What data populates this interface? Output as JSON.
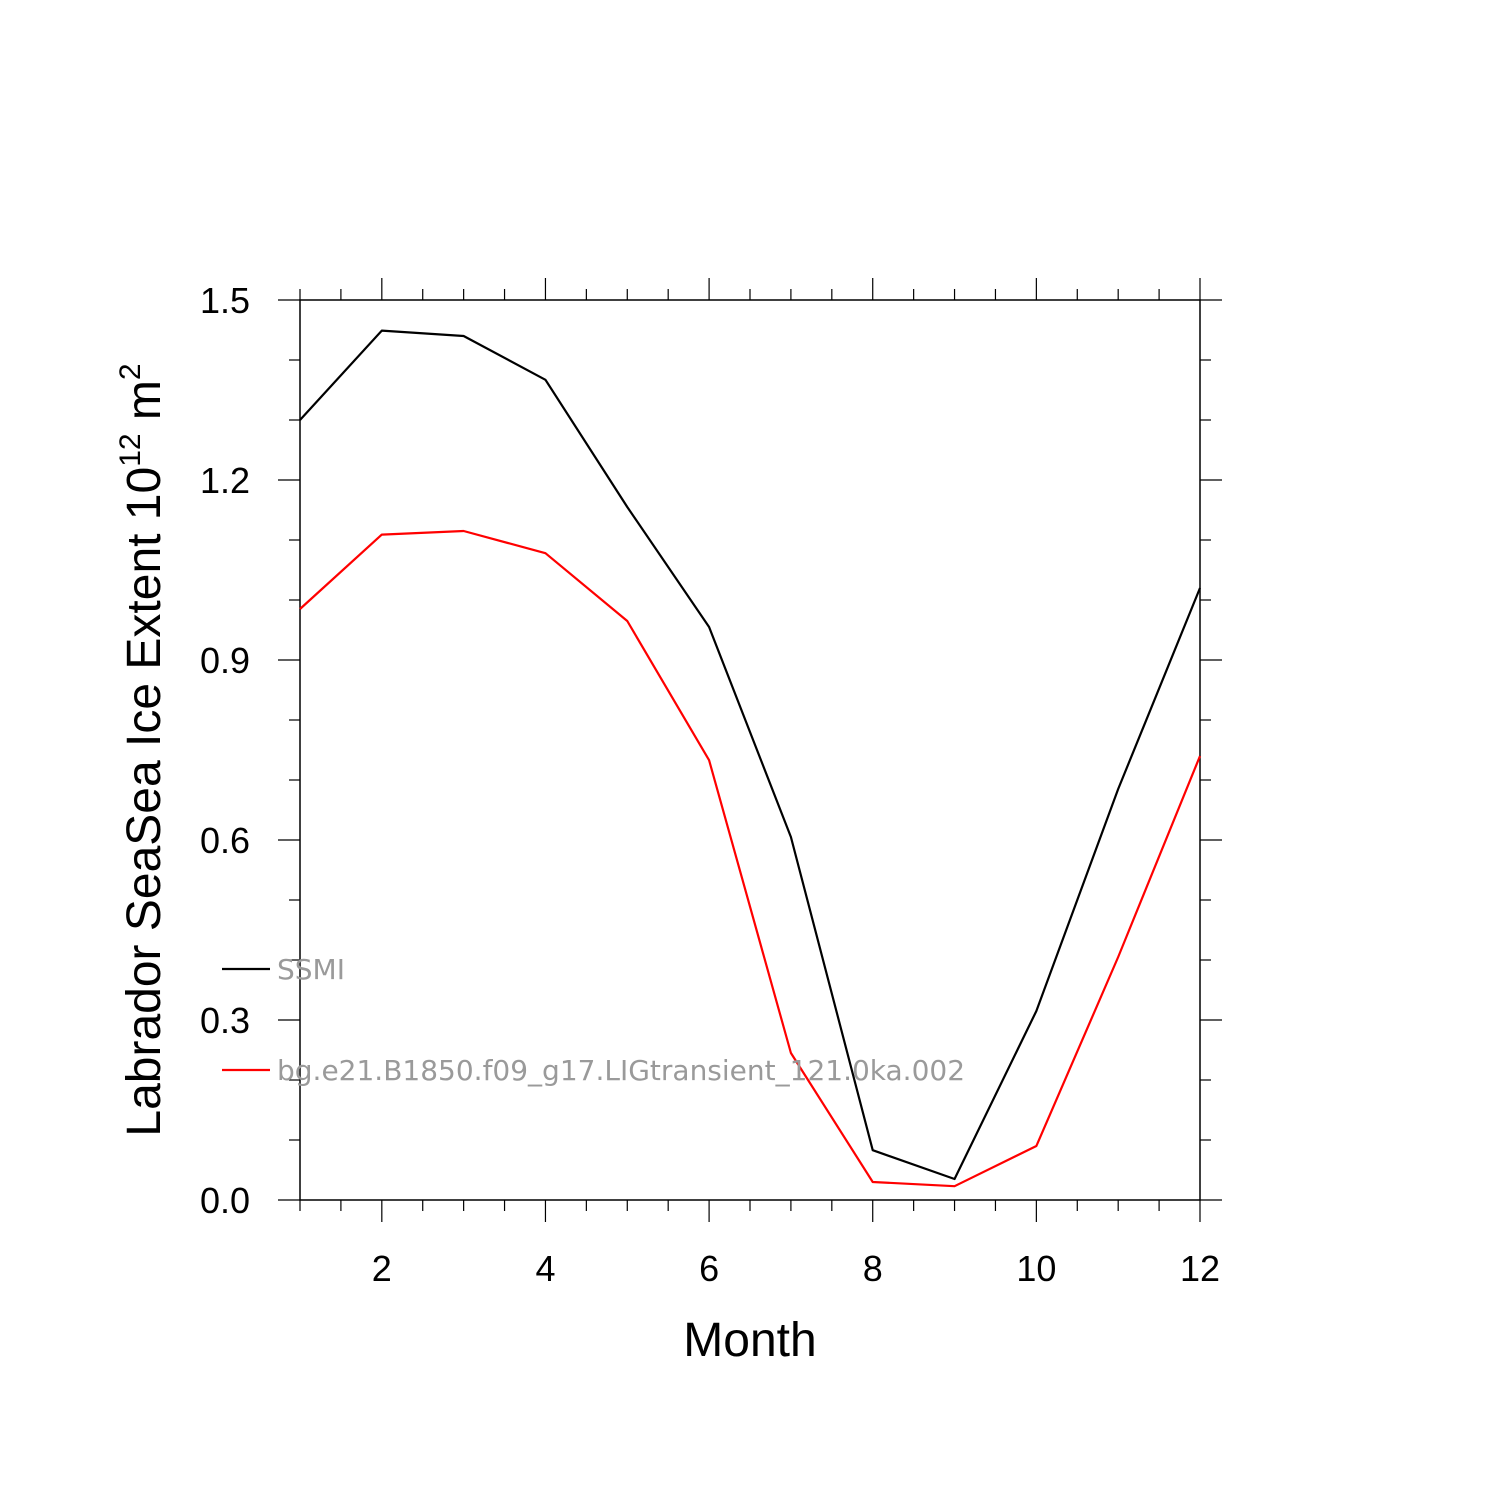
{
  "chart_data": {
    "type": "line",
    "xlabel": "Month",
    "ylabel": "Labrador SeaSea Ice Extent 10",
    "ylabel_sup": "12",
    "ylabel_unit": "m",
    "ylabel_unit_sup": "2",
    "xlim": [
      1,
      12
    ],
    "ylim": [
      0,
      1.5
    ],
    "xticks": [
      2,
      4,
      6,
      8,
      10,
      12
    ],
    "yticks": [
      "0.0",
      "0.3",
      "0.6",
      "0.9",
      "1.2",
      "1.5"
    ],
    "x": [
      1,
      2,
      3,
      4,
      5,
      6,
      7,
      8,
      9,
      10,
      11,
      12
    ],
    "series": [
      {
        "name": "SSMI",
        "color": "#000000",
        "values": [
          1.3,
          1.449,
          1.44,
          1.367,
          1.155,
          0.955,
          0.605,
          0.083,
          0.035,
          0.315,
          0.685,
          1.02
        ]
      },
      {
        "name": "bg.e21.B1850.f09_g17.LIGtransient_121.0ka.002",
        "color": "#ff0000",
        "values": [
          0.985,
          1.109,
          1.115,
          1.078,
          0.965,
          0.733,
          0.245,
          0.03,
          0.023,
          0.09,
          0.405,
          0.74
        ]
      }
    ],
    "legend_position": "inside-bottom-left",
    "grid": false
  }
}
